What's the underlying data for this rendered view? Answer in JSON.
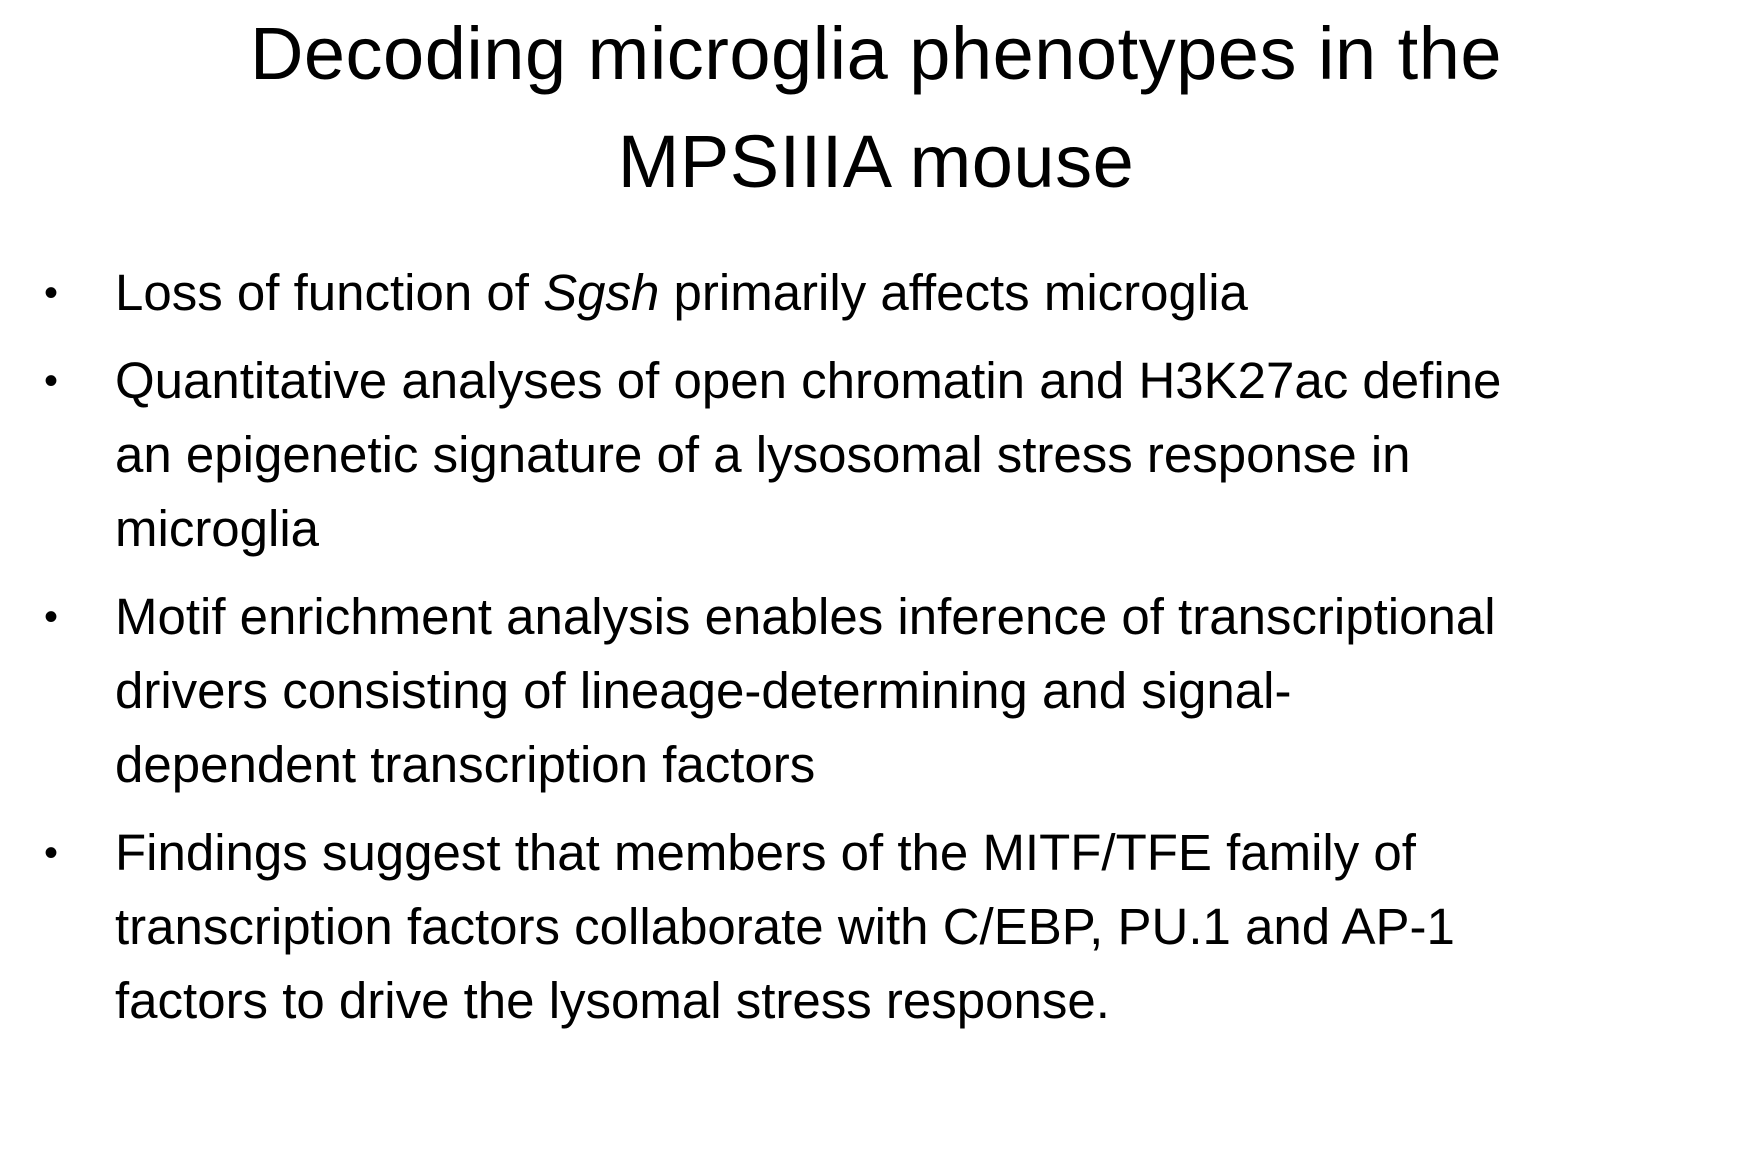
{
  "title": {
    "line1": "Decoding microglia phenotypes in the",
    "line2": "MPSIIIA mouse"
  },
  "bullets": [
    {
      "pre": "Loss of function of ",
      "italic": "Sgsh",
      "post": " primarily affects microglia"
    },
    {
      "lines": [
        "Quantitative analyses of open chromatin and H3K27ac define",
        "an epigenetic signature of a lysosomal stress response in",
        "microglia"
      ]
    },
    {
      "lines": [
        "Motif enrichment analysis enables inference of transcriptional",
        "drivers consisting of lineage-determining and signal-",
        "dependent transcription factors"
      ]
    },
    {
      "lines": [
        "Findings suggest that members of the MITF/TFE family of",
        "transcription factors collaborate with C/EBP, PU.1 and AP-1",
        "factors to drive the lysomal stress response."
      ]
    }
  ],
  "bullet_glyph": "•"
}
